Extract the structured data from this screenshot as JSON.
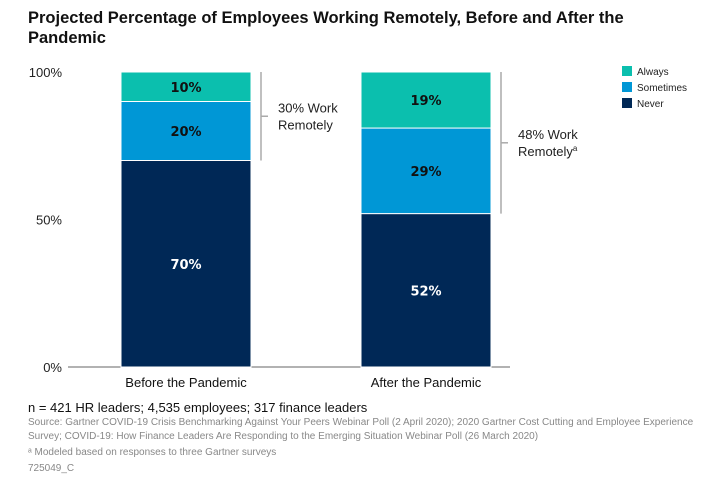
{
  "chart_data": {
    "type": "stacked-bar",
    "title": "Projected Percentage of Employees Working Remotely, Before and After the Pandemic",
    "categories": [
      "Before the Pandemic",
      "After the Pandemic"
    ],
    "series": [
      {
        "name": "Never",
        "values": [
          70,
          52
        ],
        "color": "#002856"
      },
      {
        "name": "Sometimes",
        "values": [
          20,
          29
        ],
        "color": "#0097d6"
      },
      {
        "name": "Always",
        "values": [
          10,
          19
        ],
        "color": "#0bbfae"
      }
    ],
    "data_labels": [
      [
        "70%",
        "20%",
        "10%"
      ],
      [
        "52%",
        "29%",
        "19%"
      ]
    ],
    "ylim": [
      0,
      100
    ],
    "yticks": [
      "0%",
      "50%",
      "100%"
    ],
    "legend": "top-right",
    "legend_order": [
      "Always",
      "Sometimes",
      "Never"
    ],
    "annotations": [
      {
        "line1": "30% Work",
        "line2": "Remotely",
        "sup": ""
      },
      {
        "line1": "48% Work",
        "line2": "Remotely",
        "sup": "a"
      }
    ]
  },
  "footer": {
    "n": "n = 421 HR leaders; 4,535 employees; 317 finance leaders",
    "source": "Source: Gartner COVID-19 Crisis Benchmarking Against Your Peers Webinar Poll (2 April 2020); 2020 Gartner Cost Cutting and Employee Experience Survey; COVID-19: How Finance Leaders Are Responding to the Emerging Situation Webinar Poll (26 March 2020)",
    "note": "ᵃ Modeled based on responses to three Gartner surveys",
    "id": "725049_C"
  }
}
